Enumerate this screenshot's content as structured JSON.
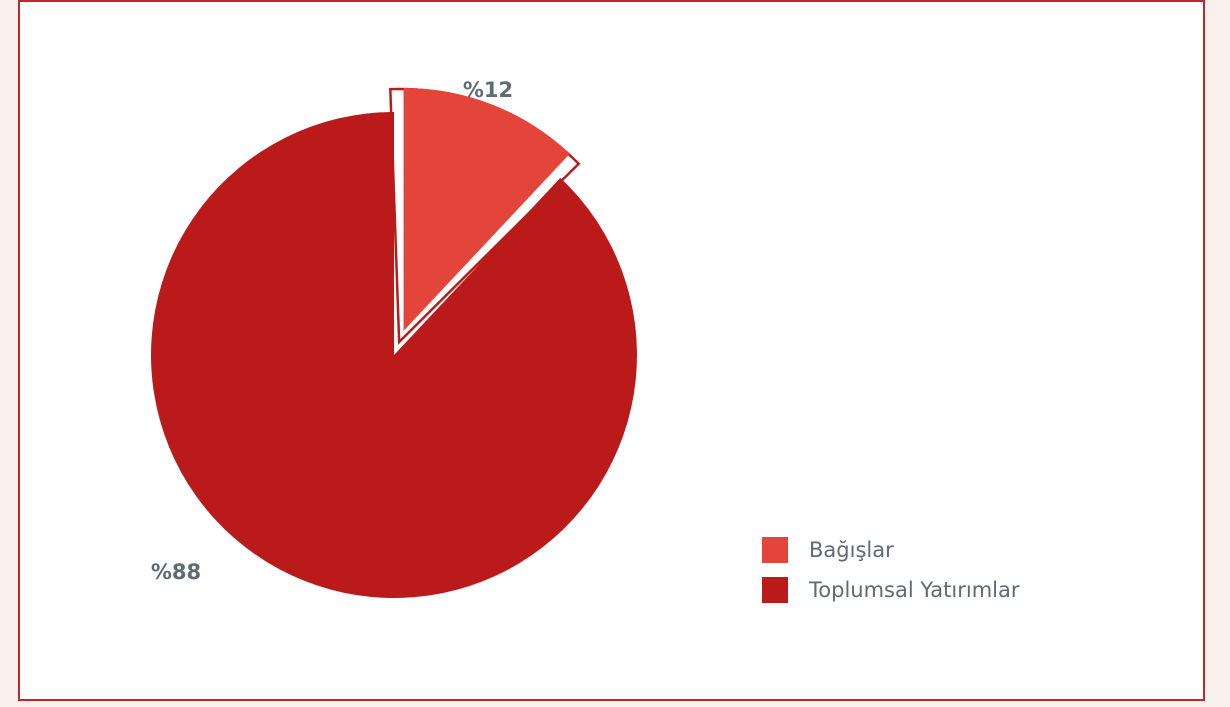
{
  "chart_data": {
    "type": "pie",
    "title": "",
    "slices": [
      {
        "label": "Bağışlar",
        "value": 12,
        "value_label": "%12",
        "color": "#e4453a",
        "exploded": true
      },
      {
        "label": "Toplumsal Yatırımlar",
        "value": 88,
        "value_label": "%88",
        "color": "#bb1a1a",
        "exploded": false
      }
    ],
    "legend_position": "bottom-right"
  },
  "colors": {
    "frame_border": "#c0272d",
    "page_background": "#fbf1ec",
    "label_text": "#5e6b73"
  }
}
